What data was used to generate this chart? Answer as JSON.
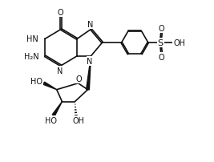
{
  "bg": "#ffffff",
  "lc": "#111111",
  "lw": 1.2,
  "fs": 7.0,
  "dbl_off": 0.033,
  "xlim": [
    0,
    10
  ],
  "ylim": [
    0,
    7.6
  ]
}
